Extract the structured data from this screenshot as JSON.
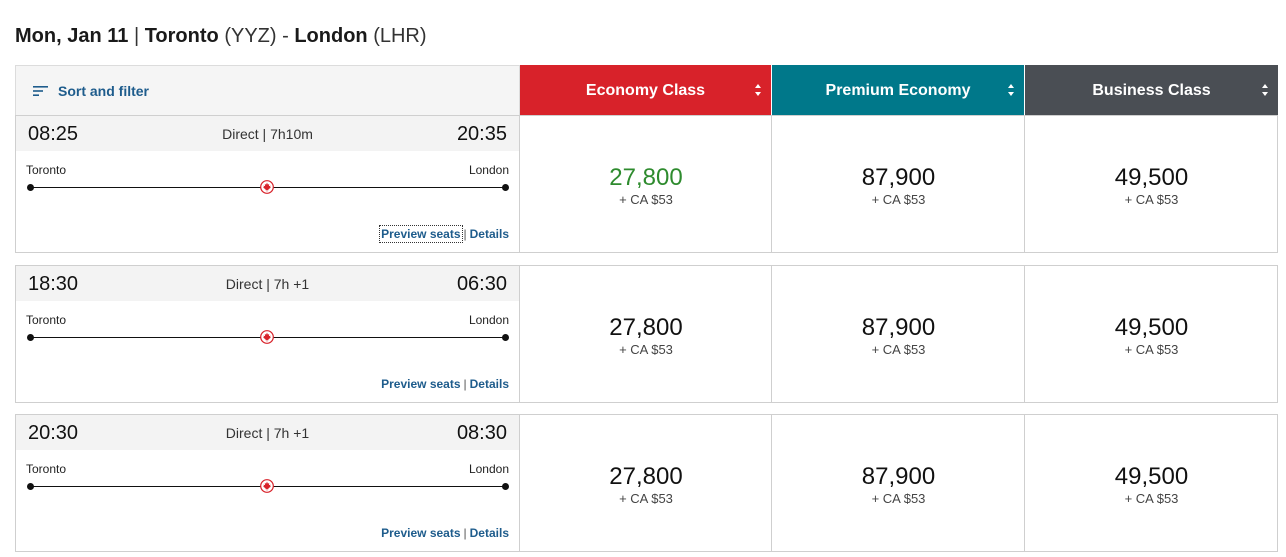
{
  "header": {
    "date": "Mon, Jan 11",
    "separator": "|",
    "origin_city": "Toronto",
    "origin_code": "(YYZ)",
    "dash": "-",
    "dest_city": "London",
    "dest_code": "(LHR)"
  },
  "toolbar": {
    "sort_filter_label": "Sort and filter",
    "sort_filter_icon": "filter-lines-icon"
  },
  "cabins": [
    {
      "label": "Economy Class",
      "color": "#d8222a"
    },
    {
      "label": "Premium Economy",
      "color": "#00788a"
    },
    {
      "label": "Business Class",
      "color": "#4a4e54"
    }
  ],
  "link_labels": {
    "preview": "Preview seats",
    "separator": "|",
    "details": "Details"
  },
  "airline_icon": "maple-leaf-icon",
  "flights": [
    {
      "departure": "08:25",
      "arrival": "20:35",
      "duration": "Direct | 7h10m",
      "from": "Toronto",
      "to": "London",
      "fares": [
        {
          "points": "27,800",
          "tax": "+ CA $53",
          "highlight": true
        },
        {
          "points": "87,900",
          "tax": "+ CA $53"
        },
        {
          "points": "49,500",
          "tax": "+ CA $53"
        }
      ]
    },
    {
      "departure": "18:30",
      "arrival": "06:30",
      "duration": "Direct | 7h +1",
      "from": "Toronto",
      "to": "London",
      "fares": [
        {
          "points": "27,800",
          "tax": "+ CA $53"
        },
        {
          "points": "87,900",
          "tax": "+ CA $53"
        },
        {
          "points": "49,500",
          "tax": "+ CA $53"
        }
      ]
    },
    {
      "departure": "20:30",
      "arrival": "08:30",
      "duration": "Direct | 7h +1",
      "from": "Toronto",
      "to": "London",
      "fares": [
        {
          "points": "27,800",
          "tax": "+ CA $53"
        },
        {
          "points": "87,900",
          "tax": "+ CA $53"
        },
        {
          "points": "49,500",
          "tax": "+ CA $53"
        }
      ]
    }
  ]
}
